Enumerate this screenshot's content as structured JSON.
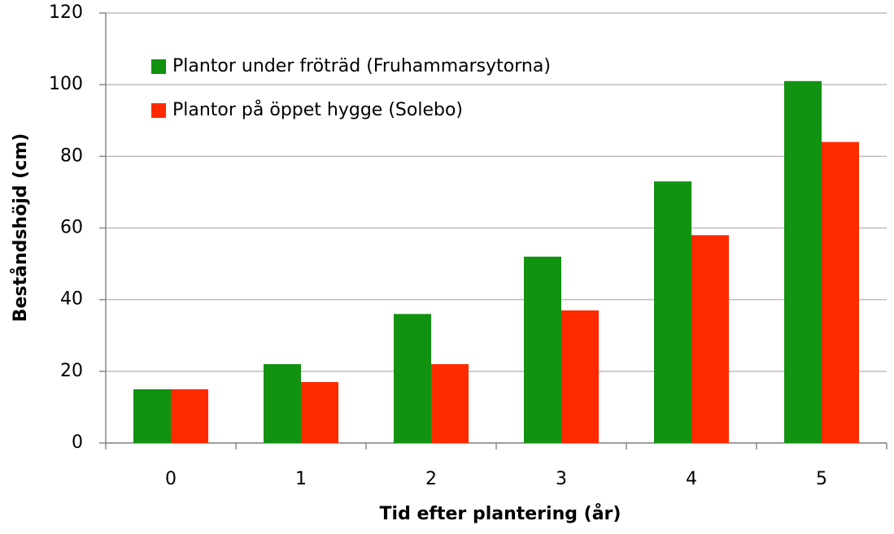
{
  "chart_data": {
    "type": "bar",
    "x_label": "Tid efter plantering (år)",
    "y_label": "Beståndshöjd (cm)",
    "categories": [
      "0",
      "1",
      "2",
      "3",
      "4",
      "5"
    ],
    "series": [
      {
        "name": "Plantor under fröträd (Fruhammarsytorna)",
        "color": "#119211",
        "values": [
          15,
          22,
          36,
          52,
          73,
          101
        ]
      },
      {
        "name": "Plantor på öppet hygge (Solebo)",
        "color": "#ff2a00",
        "values": [
          15,
          17,
          22,
          37,
          58,
          84
        ]
      }
    ],
    "ylim": [
      0,
      120
    ],
    "yticks": [
      0,
      20,
      40,
      60,
      80,
      100,
      120
    ],
    "grid": true,
    "legend": "upper left"
  }
}
